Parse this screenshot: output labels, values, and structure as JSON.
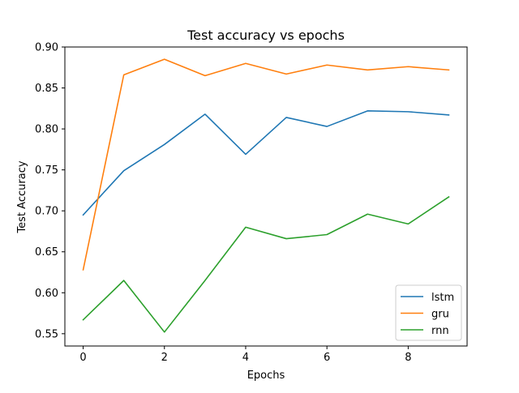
{
  "chart_data": {
    "type": "line",
    "title": "Test accuracy vs epochs",
    "xlabel": "Epochs",
    "ylabel": "Test Accuracy",
    "x": [
      0,
      1,
      2,
      3,
      4,
      5,
      6,
      7,
      8,
      9
    ],
    "xlim": [
      -0.45,
      9.45
    ],
    "ylim": [
      0.535,
      0.9
    ],
    "xticks": [
      0,
      2,
      4,
      6,
      8
    ],
    "xtick_labels": [
      "0",
      "2",
      "4",
      "6",
      "8"
    ],
    "yticks": [
      0.55,
      0.6,
      0.65,
      0.7,
      0.75,
      0.8,
      0.85,
      0.9
    ],
    "ytick_labels": [
      "0.55",
      "0.60",
      "0.65",
      "0.70",
      "0.75",
      "0.80",
      "0.85",
      "0.90"
    ],
    "grid": false,
    "legend_position": "bottom-right",
    "series": [
      {
        "name": "lstm",
        "color": "#1f77b4",
        "values": [
          0.695,
          0.749,
          0.781,
          0.818,
          0.769,
          0.814,
          0.803,
          0.822,
          0.821,
          0.817
        ]
      },
      {
        "name": "gru",
        "color": "#ff7f0e",
        "values": [
          0.628,
          0.866,
          0.885,
          0.865,
          0.88,
          0.867,
          0.878,
          0.872,
          0.876,
          0.872
        ]
      },
      {
        "name": "rnn",
        "color": "#2ca02c",
        "values": [
          0.567,
          0.615,
          0.552,
          0.615,
          0.68,
          0.666,
          0.671,
          0.696,
          0.684,
          0.717
        ]
      }
    ]
  }
}
